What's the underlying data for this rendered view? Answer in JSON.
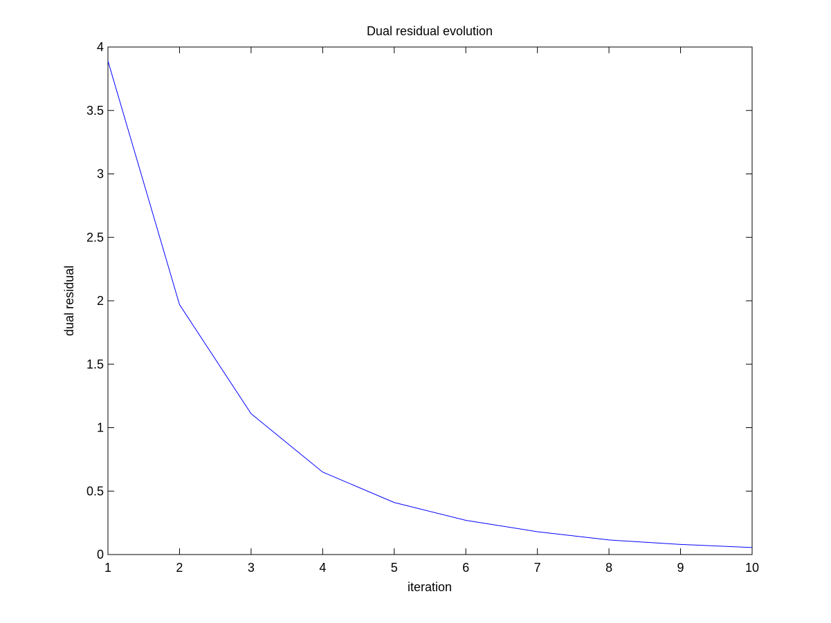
{
  "chart_data": {
    "type": "line",
    "title": "Dual residual evolution",
    "xlabel": "iteration",
    "ylabel": "dual residual",
    "xlim": [
      1,
      10
    ],
    "ylim": [
      0,
      4
    ],
    "xticks": [
      "1",
      "2",
      "3",
      "4",
      "5",
      "6",
      "7",
      "8",
      "9",
      "10"
    ],
    "yticks": [
      "0",
      "0.5",
      "1",
      "1.5",
      "2",
      "2.5",
      "3",
      "3.5",
      "4"
    ],
    "grid": false,
    "series": [
      {
        "x": [
          1,
          2,
          3,
          4,
          5,
          6,
          7,
          8,
          9,
          10
        ],
        "values": [
          3.89,
          1.97,
          1.11,
          0.65,
          0.41,
          0.27,
          0.18,
          0.115,
          0.08,
          0.055
        ],
        "color": "#0000ff"
      }
    ]
  }
}
